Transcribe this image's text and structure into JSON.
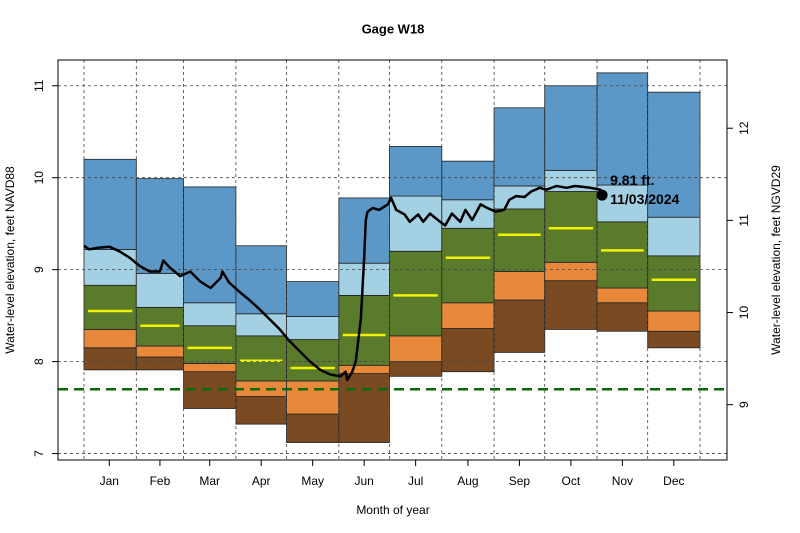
{
  "chart_data": {
    "type": "percentile_boxes",
    "title": "Gage W18",
    "x_label": "Month of year",
    "y_label": "Water-level elevation, feet NAVD88",
    "y2_label": "Water-level elevation, feet NGVD29",
    "xlim": [
      -14.4,
      382.0
    ],
    "ylim": [
      6.93,
      11.28
    ],
    "y2lim": [
      8.4,
      12.74
    ],
    "xticks": [
      {
        "value": 16,
        "label": "Jan"
      },
      {
        "value": 46,
        "label": "Feb"
      },
      {
        "value": 75.5,
        "label": "Mar"
      },
      {
        "value": 106,
        "label": "Apr"
      },
      {
        "value": 136.5,
        "label": "May"
      },
      {
        "value": 167,
        "label": "Jun"
      },
      {
        "value": 197.5,
        "label": "Jul"
      },
      {
        "value": 228.5,
        "label": "Aug"
      },
      {
        "value": 259,
        "label": "Sep"
      },
      {
        "value": 289.5,
        "label": "Oct"
      },
      {
        "value": 320,
        "label": "Nov"
      },
      {
        "value": 350.5,
        "label": "Dec"
      }
    ],
    "yticks": [
      7,
      8,
      9,
      10,
      11
    ],
    "y2ticks": [
      9,
      10,
      11,
      12
    ],
    "grid": true,
    "month_edges": [
      1,
      32,
      60,
      91,
      121,
      152,
      182,
      213,
      244,
      274,
      305,
      335,
      366
    ],
    "boundaries": [
      [
        7.91,
        7.91,
        7.49,
        7.32,
        7.12,
        7.12,
        7.84,
        7.89,
        8.1,
        8.35,
        8.33,
        8.15
      ],
      [
        8.15,
        8.05,
        7.89,
        7.62,
        7.43,
        7.87,
        8.0,
        8.36,
        8.67,
        8.88,
        8.64,
        8.33
      ],
      [
        8.35,
        8.17,
        7.98,
        7.79,
        7.79,
        7.96,
        8.28,
        8.64,
        8.98,
        9.08,
        8.8,
        8.55
      ],
      [
        8.83,
        8.59,
        8.39,
        8.28,
        8.24,
        8.72,
        9.2,
        9.45,
        9.66,
        9.85,
        9.52,
        9.15
      ],
      [
        9.22,
        8.96,
        8.64,
        8.52,
        8.49,
        9.07,
        9.8,
        9.76,
        9.91,
        10.08,
        9.92,
        9.57
      ],
      [
        10.2,
        9.99,
        9.9,
        9.26,
        8.87,
        9.78,
        10.34,
        10.18,
        10.76,
        11.0,
        11.14,
        10.93
      ]
    ],
    "band_colors": [
      "#7a4a22",
      "#e8883a",
      "#5a7a2c",
      "#a3d0e2",
      "#5b97c7"
    ],
    "median": [
      8.55,
      8.39,
      8.15,
      8.01,
      7.93,
      8.29,
      8.72,
      9.13,
      9.38,
      9.45,
      9.21,
      8.89
    ],
    "median_color": "#f2f200",
    "reference_line": 7.7,
    "reference_color": "#0a6a0a",
    "line": {
      "color": "#000000",
      "x": [
        1,
        4,
        10,
        16,
        22,
        28,
        34,
        40,
        46,
        48,
        52,
        58,
        64,
        70,
        76,
        82,
        83,
        87,
        93,
        99,
        105,
        111,
        117,
        123,
        129,
        135,
        141,
        147,
        153,
        156,
        157,
        160,
        162,
        165,
        167,
        168,
        169,
        172,
        176,
        181,
        183,
        186,
        191,
        194,
        199,
        202,
        206,
        212,
        215,
        219,
        224,
        227,
        231,
        236,
        240,
        245,
        250,
        253,
        257,
        262,
        266,
        271,
        275,
        281,
        287,
        292,
        301,
        307,
        308
      ],
      "values": [
        9.26,
        9.22,
        9.24,
        9.25,
        9.2,
        9.13,
        9.04,
        8.98,
        8.98,
        9.1,
        9.02,
        8.93,
        8.98,
        8.87,
        8.8,
        8.91,
        8.98,
        8.86,
        8.76,
        8.67,
        8.57,
        8.46,
        8.35,
        8.22,
        8.11,
        8.0,
        7.91,
        7.86,
        7.84,
        7.89,
        7.8,
        7.89,
        8.0,
        8.46,
        9.11,
        9.54,
        9.63,
        9.67,
        9.65,
        9.71,
        9.78,
        9.65,
        9.6,
        9.52,
        9.6,
        9.52,
        9.61,
        9.52,
        9.48,
        9.61,
        9.52,
        9.65,
        9.54,
        9.71,
        9.67,
        9.63,
        9.65,
        9.76,
        9.8,
        9.79,
        9.85,
        9.89,
        9.87,
        9.91,
        9.89,
        9.91,
        9.89,
        9.87,
        9.81
      ]
    },
    "current": {
      "x": 308,
      "value": 9.81,
      "value_label": "9.81 ft.",
      "date_label": "11/03/2024"
    }
  }
}
